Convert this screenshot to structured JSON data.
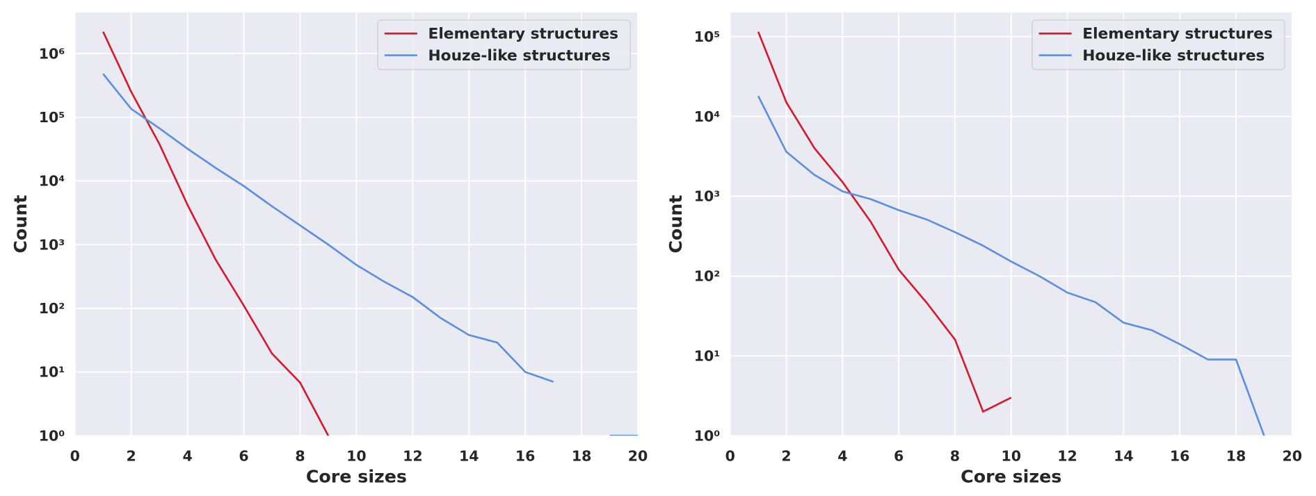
{
  "chart_data": [
    {
      "type": "line",
      "xlabel": "Core sizes",
      "ylabel": "Count",
      "x": [
        1,
        2,
        3,
        4,
        5,
        6,
        7,
        8,
        9,
        10,
        11,
        12,
        13,
        14,
        15,
        16,
        17,
        18,
        19,
        20
      ],
      "series": [
        {
          "name": "Elementary structures",
          "color": "#d7192d",
          "values": [
            2200000,
            250000,
            38000,
            4200,
            580,
            110,
            19.5,
            6.8,
            1,
            null,
            null,
            null,
            null,
            null,
            null,
            null,
            null,
            null,
            null,
            null
          ]
        },
        {
          "name": "Houze-like structures",
          "color": "#5b8fe0",
          "values": [
            480000,
            135000,
            67000,
            32000,
            16000,
            8300,
            4000,
            2000,
            1000,
            480,
            260,
            150,
            70,
            38,
            29,
            10,
            7,
            null,
            1,
            1
          ]
        }
      ],
      "xlim": [
        0,
        20
      ],
      "xticks": [
        0,
        2,
        4,
        6,
        8,
        10,
        12,
        14,
        16,
        18,
        20
      ],
      "ylim": [
        1,
        4400000
      ],
      "log_y": true,
      "yticks": [
        {
          "value": 1,
          "label": "10⁰"
        },
        {
          "value": 10,
          "label": "10¹"
        },
        {
          "value": 100,
          "label": "10²"
        },
        {
          "value": 1000,
          "label": "10³"
        },
        {
          "value": 10000,
          "label": "10⁴"
        },
        {
          "value": 100000,
          "label": "10⁵"
        },
        {
          "value": 1000000,
          "label": "10⁶"
        }
      ],
      "grid": true,
      "legend": "upper right"
    },
    {
      "type": "line",
      "xlabel": "Core sizes",
      "ylabel": "Count",
      "x": [
        1,
        2,
        3,
        4,
        5,
        6,
        7,
        8,
        9,
        10,
        11,
        12,
        13,
        14,
        15,
        16,
        17,
        18,
        19
      ],
      "series": [
        {
          "name": "Elementary structures",
          "color": "#d7192d",
          "values": [
            115000,
            15000,
            4000,
            1500,
            480,
            120,
            46,
            16,
            2,
            3,
            null,
            null,
            null,
            null,
            null,
            null,
            null,
            null,
            null
          ]
        },
        {
          "name": "Houze-like structures",
          "color": "#5b8fe0",
          "values": [
            18000,
            3600,
            1850,
            1150,
            920,
            670,
            510,
            355,
            240,
            152,
            100,
            62,
            47,
            26,
            21,
            14,
            9,
            9,
            1
          ]
        }
      ],
      "xlim": [
        0,
        20
      ],
      "xticks": [
        0,
        2,
        4,
        6,
        8,
        10,
        12,
        14,
        16,
        18,
        20
      ],
      "ylim": [
        1,
        200000
      ],
      "log_y": true,
      "yticks": [
        {
          "value": 1,
          "label": "10⁰"
        },
        {
          "value": 10,
          "label": "10¹"
        },
        {
          "value": 100,
          "label": "10²"
        },
        {
          "value": 1000,
          "label": "10³"
        },
        {
          "value": 10000,
          "label": "10⁴"
        },
        {
          "value": 100000,
          "label": "10⁵"
        }
      ],
      "grid": true,
      "legend": "upper right"
    }
  ]
}
